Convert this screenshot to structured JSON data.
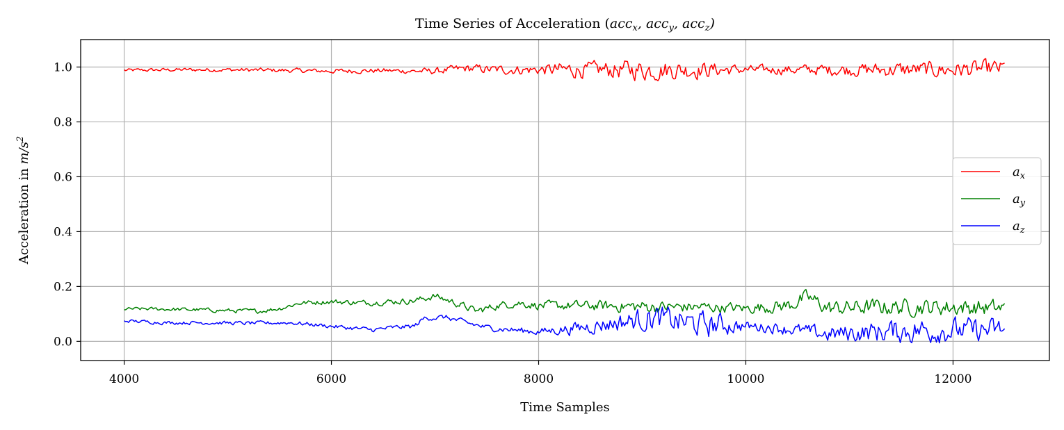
{
  "chart_data": {
    "type": "line",
    "title": "Time Series of Acceleration (accₓ, accᵧ, accᵩ)",
    "xlabel": "Time Samples",
    "ylabel": "Acceleration in m/s²",
    "xlim": [
      3580,
      12930
    ],
    "ylim": [
      -0.07,
      1.1
    ],
    "xticks": [
      4000,
      6000,
      8000,
      10000,
      12000
    ],
    "xtick_labels": [
      "4000",
      "6000",
      "8000",
      "10000",
      "12000"
    ],
    "yticks": [
      0.0,
      0.2,
      0.4,
      0.6,
      0.8,
      1.0
    ],
    "ytick_labels": [
      "0.0",
      "0.2",
      "0.4",
      "0.6",
      "0.8",
      "1.0"
    ],
    "grid": true,
    "legend_position": "center-right",
    "x_range": [
      4000,
      12500
    ],
    "series": [
      {
        "name": "aₓ",
        "color": "#ff0000",
        "keypoints": [
          [
            4000,
            0.988
          ],
          [
            4500,
            0.99
          ],
          [
            5000,
            0.99
          ],
          [
            5500,
            0.988
          ],
          [
            6000,
            0.985
          ],
          [
            6500,
            0.987
          ],
          [
            6800,
            0.985
          ],
          [
            7000,
            0.985
          ],
          [
            7300,
            0.995
          ],
          [
            7600,
            0.99
          ],
          [
            8000,
            0.99
          ],
          [
            8300,
            0.99
          ],
          [
            8700,
            0.99
          ],
          [
            9100,
            0.99
          ],
          [
            9500,
            0.99
          ],
          [
            9800,
            0.99
          ],
          [
            10000,
            0.99
          ],
          [
            10500,
            0.99
          ],
          [
            11000,
            0.99
          ],
          [
            11500,
            0.99
          ],
          [
            12000,
            0.99
          ],
          [
            12500,
            0.995
          ]
        ],
        "noise": [
          [
            4000,
            0.004
          ],
          [
            6700,
            0.006
          ],
          [
            7300,
            0.01
          ],
          [
            8000,
            0.012
          ],
          [
            8300,
            0.02
          ],
          [
            8500,
            0.018
          ],
          [
            9000,
            0.025
          ],
          [
            9600,
            0.02
          ],
          [
            10000,
            0.01
          ],
          [
            10500,
            0.012
          ],
          [
            11000,
            0.015
          ],
          [
            11500,
            0.018
          ],
          [
            12000,
            0.02
          ],
          [
            12500,
            0.02
          ]
        ]
      },
      {
        "name": "aᵧ",
        "color": "#008000",
        "keypoints": [
          [
            4000,
            0.118
          ],
          [
            4300,
            0.118
          ],
          [
            4700,
            0.115
          ],
          [
            5000,
            0.112
          ],
          [
            5300,
            0.11
          ],
          [
            5500,
            0.12
          ],
          [
            5700,
            0.14
          ],
          [
            6000,
            0.145
          ],
          [
            6300,
            0.14
          ],
          [
            6600,
            0.145
          ],
          [
            6800,
            0.148
          ],
          [
            7000,
            0.165
          ],
          [
            7200,
            0.14
          ],
          [
            7400,
            0.11
          ],
          [
            7600,
            0.13
          ],
          [
            7800,
            0.14
          ],
          [
            8000,
            0.13
          ],
          [
            8400,
            0.13
          ],
          [
            8800,
            0.128
          ],
          [
            9200,
            0.125
          ],
          [
            9600,
            0.125
          ],
          [
            10000,
            0.12
          ],
          [
            10400,
            0.13
          ],
          [
            10600,
            0.16
          ],
          [
            10800,
            0.12
          ],
          [
            11200,
            0.125
          ],
          [
            11600,
            0.125
          ],
          [
            12000,
            0.125
          ],
          [
            12500,
            0.12
          ]
        ],
        "noise": [
          [
            4000,
            0.004
          ],
          [
            6000,
            0.006
          ],
          [
            7000,
            0.008
          ],
          [
            8000,
            0.01
          ],
          [
            9000,
            0.015
          ],
          [
            10000,
            0.012
          ],
          [
            10500,
            0.018
          ],
          [
            11500,
            0.02
          ],
          [
            12500,
            0.02
          ]
        ]
      },
      {
        "name": "aᵩ",
        "color": "#0000ff",
        "keypoints": [
          [
            4000,
            0.075
          ],
          [
            4400,
            0.068
          ],
          [
            4800,
            0.068
          ],
          [
            5200,
            0.066
          ],
          [
            5600,
            0.068
          ],
          [
            5800,
            0.062
          ],
          [
            6000,
            0.055
          ],
          [
            6200,
            0.048
          ],
          [
            6400,
            0.042
          ],
          [
            6600,
            0.05
          ],
          [
            6800,
            0.055
          ],
          [
            6900,
            0.085
          ],
          [
            7100,
            0.088
          ],
          [
            7300,
            0.068
          ],
          [
            7500,
            0.05
          ],
          [
            7800,
            0.04
          ],
          [
            8000,
            0.035
          ],
          [
            8300,
            0.045
          ],
          [
            8600,
            0.06
          ],
          [
            8900,
            0.075
          ],
          [
            9100,
            0.085
          ],
          [
            9300,
            0.075
          ],
          [
            9600,
            0.06
          ],
          [
            9800,
            0.06
          ],
          [
            10000,
            0.055
          ],
          [
            10300,
            0.05
          ],
          [
            10600,
            0.035
          ],
          [
            10800,
            0.025
          ],
          [
            11000,
            0.03
          ],
          [
            11300,
            0.035
          ],
          [
            11700,
            0.04
          ],
          [
            12000,
            0.04
          ],
          [
            12500,
            0.04
          ]
        ],
        "noise": [
          [
            4000,
            0.004
          ],
          [
            6000,
            0.005
          ],
          [
            7000,
            0.006
          ],
          [
            8000,
            0.008
          ],
          [
            8300,
            0.014
          ],
          [
            8800,
            0.022
          ],
          [
            9100,
            0.03
          ],
          [
            9700,
            0.03
          ],
          [
            10000,
            0.012
          ],
          [
            10500,
            0.015
          ],
          [
            11000,
            0.022
          ],
          [
            11600,
            0.03
          ],
          [
            12500,
            0.028
          ]
        ]
      }
    ]
  }
}
